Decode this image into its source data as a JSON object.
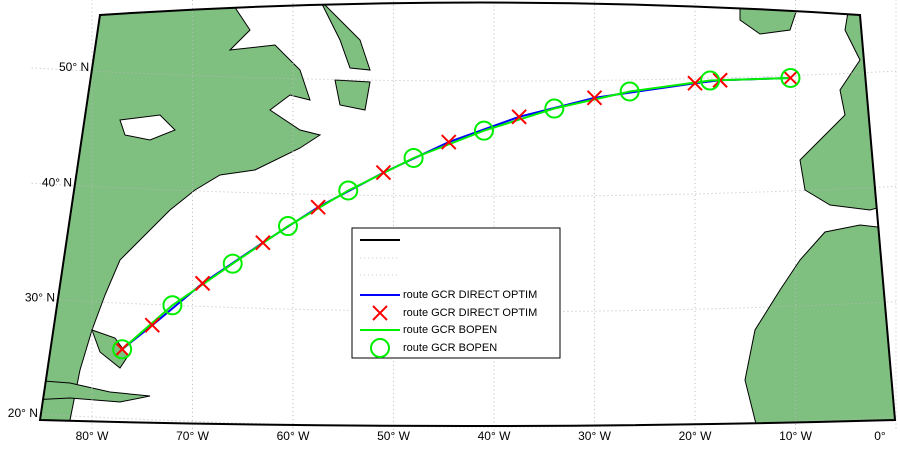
{
  "map": {
    "lat_ticks": [
      {
        "value": 20,
        "label": "20° N"
      },
      {
        "value": 30,
        "label": "30° N"
      },
      {
        "value": 40,
        "label": "40° N"
      },
      {
        "value": 50,
        "label": "50° N"
      }
    ],
    "lon_ticks": [
      {
        "value": -80,
        "label": "80° W"
      },
      {
        "value": -70,
        "label": "70° W"
      },
      {
        "value": -60,
        "label": "60° W"
      },
      {
        "value": -50,
        "label": "50° W"
      },
      {
        "value": -40,
        "label": "40° W"
      },
      {
        "value": -30,
        "label": "30° W"
      },
      {
        "value": -20,
        "label": "20° W"
      },
      {
        "value": -10,
        "label": "10° W"
      },
      {
        "value": 0,
        "label": "0°"
      }
    ],
    "routes": [
      {
        "name": "route GCR DIRECT OPTIM",
        "color": "#0000ff",
        "line_name": "route GCR DIRECT OPTIM",
        "marker": "x",
        "marker_color": "#ff0000",
        "lon": [
          -77,
          -74,
          -69,
          -63,
          -57.5,
          -51,
          -44.5,
          -37.5,
          -30,
          -20,
          -17.5,
          -10.5
        ],
        "lat": [
          26,
          28.2,
          32,
          35.7,
          38.9,
          42,
          44.7,
          46.9,
          48.5,
          49.6,
          49.8,
          49.8
        ]
      },
      {
        "name": "route GCR BOPEN",
        "color": "#00ee00",
        "line_name": "route GCR BOPEN",
        "marker": "o",
        "marker_color": "#00ee00",
        "lon": [
          -77,
          -72,
          -66,
          -60.5,
          -54.5,
          -48,
          -41,
          -34,
          -26.5,
          -18.5,
          -10.5
        ],
        "lat": [
          26,
          30,
          33.8,
          37.2,
          40.4,
          43.3,
          45.7,
          47.6,
          49,
          49.8,
          49.8
        ]
      }
    ]
  }
}
